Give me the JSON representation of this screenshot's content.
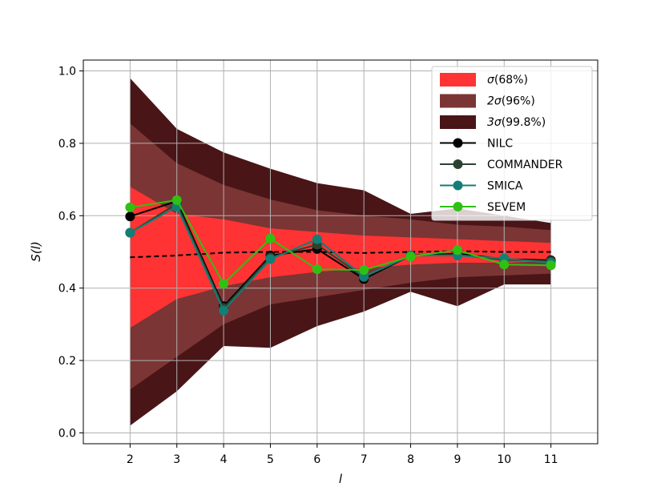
{
  "chart_data": {
    "type": "line",
    "xlabel": "l",
    "ylabel": "S(l)",
    "x": [
      2,
      3,
      4,
      5,
      6,
      7,
      8,
      9,
      10,
      11
    ],
    "xlim": [
      1,
      12
    ],
    "ylim": [
      -0.03,
      1.03
    ],
    "xticks": [
      "2",
      "3",
      "4",
      "5",
      "6",
      "7",
      "8",
      "9",
      "10",
      "11"
    ],
    "yticks": [
      "0.0",
      "0.2",
      "0.4",
      "0.6",
      "0.8",
      "1.0"
    ],
    "grid": true,
    "legend_position": "top-right",
    "mean": {
      "style": "dashed",
      "color": "#000000",
      "values": [
        0.485,
        0.49,
        0.498,
        0.5,
        0.5,
        0.497,
        0.5,
        0.502,
        0.5,
        0.5
      ]
    },
    "bands": [
      {
        "name": "3σ(99.8%)",
        "sigma": "3σ",
        "pct": "(99.8%)",
        "color": "#4a1517",
        "lower": [
          0.02,
          0.115,
          0.24,
          0.235,
          0.295,
          0.335,
          0.39,
          0.35,
          0.41,
          0.41
        ],
        "upper": [
          0.98,
          0.84,
          0.775,
          0.73,
          0.69,
          0.67,
          0.605,
          0.62,
          0.6,
          0.58
        ]
      },
      {
        "name": "2σ(96%)",
        "sigma": "2σ",
        "pct": "(96%)",
        "color": "#7b3535",
        "lower": [
          0.12,
          0.21,
          0.3,
          0.355,
          0.375,
          0.395,
          0.415,
          0.43,
          0.435,
          0.44
        ],
        "upper": [
          0.855,
          0.745,
          0.685,
          0.645,
          0.615,
          0.6,
          0.59,
          0.575,
          0.57,
          0.56
        ]
      },
      {
        "name": "σ(68%)",
        "sigma": "σ",
        "pct": "(68%)",
        "color": "#ff3333",
        "lower": [
          0.29,
          0.37,
          0.405,
          0.43,
          0.445,
          0.455,
          0.465,
          0.47,
          0.47,
          0.475
        ],
        "upper": [
          0.68,
          0.605,
          0.59,
          0.565,
          0.555,
          0.545,
          0.54,
          0.535,
          0.53,
          0.525
        ]
      }
    ],
    "series": [
      {
        "name": "NILC",
        "color": "#000000",
        "values": [
          0.598,
          0.64,
          0.35,
          0.49,
          0.508,
          0.425,
          0.49,
          0.495,
          0.48,
          0.477
        ]
      },
      {
        "name": "COMMANDER",
        "color": "#2b4230",
        "values": [
          0.553,
          0.633,
          0.345,
          0.485,
          0.52,
          0.43,
          0.49,
          0.492,
          0.478,
          0.475
        ]
      },
      {
        "name": "SMICA",
        "color": "#127e76",
        "values": [
          0.553,
          0.625,
          0.338,
          0.48,
          0.535,
          0.432,
          0.49,
          0.49,
          0.482,
          0.47
        ]
      },
      {
        "name": "SEVEM",
        "color": "#30c012",
        "values": [
          0.623,
          0.643,
          0.412,
          0.537,
          0.452,
          0.45,
          0.487,
          0.505,
          0.465,
          0.463
        ]
      }
    ]
  }
}
